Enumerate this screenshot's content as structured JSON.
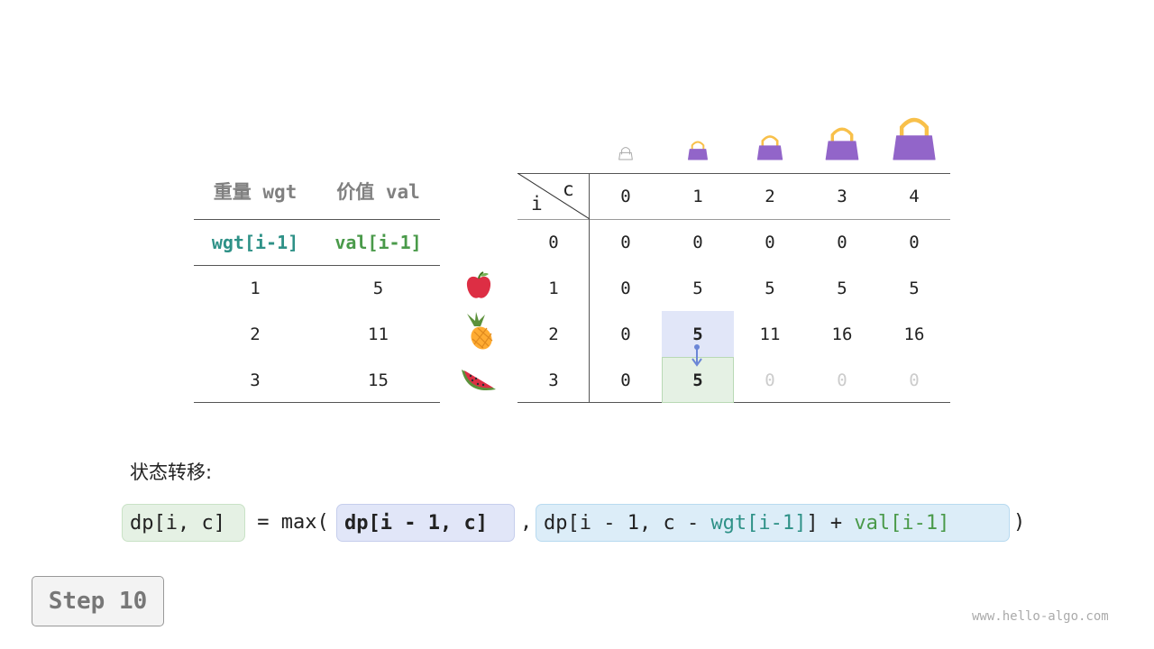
{
  "items_table": {
    "headers": [
      "重量 wgt",
      "价值 val"
    ],
    "subheaders": [
      "wgt[i-1]",
      "val[i-1]"
    ],
    "rows": [
      [
        "1",
        "5"
      ],
      [
        "2",
        "11"
      ],
      [
        "3",
        "15"
      ]
    ],
    "item_icons": [
      "apple-icon",
      "pineapple-icon",
      "watermelon-icon"
    ]
  },
  "dp_table": {
    "corner_row_label": "i",
    "corner_col_label": "c",
    "capacity_icons": [
      "empty-bag-icon",
      "bag-icon",
      "bag-icon",
      "bag-icon",
      "bag-icon"
    ],
    "columns": [
      "0",
      "1",
      "2",
      "3",
      "4"
    ],
    "row_labels": [
      "0",
      "1",
      "2",
      "3"
    ],
    "rows": [
      [
        "0",
        "0",
        "0",
        "0",
        "0"
      ],
      [
        "0",
        "5",
        "5",
        "5",
        "5"
      ],
      [
        "0",
        "5",
        "11",
        "16",
        "16"
      ],
      [
        "0",
        "5",
        "0",
        "0",
        "0"
      ]
    ],
    "highlight_source": {
      "row": 2,
      "col": 1,
      "color": "#e1e6f8"
    },
    "highlight_target": {
      "row": 3,
      "col": 1,
      "color": "#e5f1e4"
    },
    "pending_cells_color": "#cccccc"
  },
  "formula": {
    "label": "状态转移:",
    "lhs": "dp[i, c]",
    "eq": " = max(",
    "arg1": "dp[i - 1, c]",
    "comma": ",",
    "arg2_a": "dp[i - 1, c - ",
    "arg2_wgt": "wgt[i-1]",
    "arg2_b": "] + ",
    "arg2_val": "val[i-1]",
    "close": ")"
  },
  "colors": {
    "wgt": "#2e9187",
    "val": "#4a9a4a",
    "bag": "#9265c9",
    "handle": "#f8c04a"
  },
  "step_label": "Step 10",
  "watermark": "www.hello-algo.com"
}
